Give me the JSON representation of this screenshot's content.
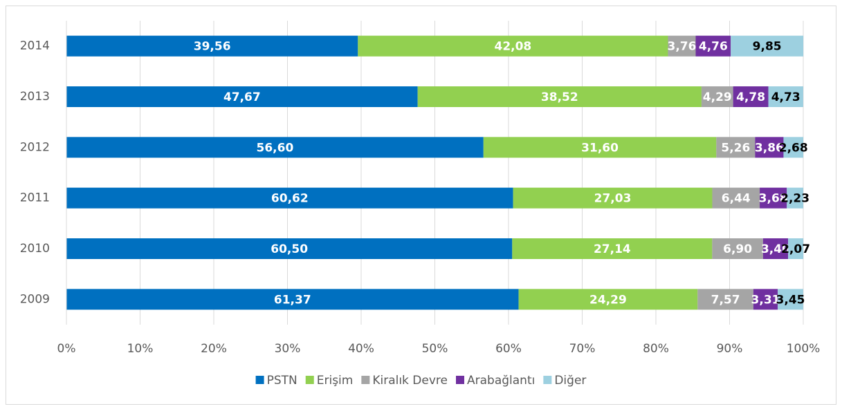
{
  "chart_data": {
    "type": "stacked_barh",
    "categories": [
      "2009",
      "2010",
      "2011",
      "2012",
      "2013",
      "2014"
    ],
    "series": [
      {
        "name": "PSTN",
        "color": "#0070c0",
        "label_color": "#ffffff",
        "values": [
          61.37,
          60.5,
          60.62,
          56.6,
          47.67,
          39.56
        ],
        "value_labels": [
          "61,37",
          "60,50",
          "60,62",
          "56,60",
          "47,67",
          "39,56"
        ]
      },
      {
        "name": "Erişim",
        "color": "#92d050",
        "label_color": "#ffffff",
        "values": [
          24.29,
          27.14,
          27.03,
          31.6,
          38.52,
          42.08
        ],
        "value_labels": [
          "24,29",
          "27,14",
          "27,03",
          "31,60",
          "38,52",
          "42,08"
        ]
      },
      {
        "name": "Kiralık Devre",
        "color": "#a5a5a5",
        "label_color": "#ffffff",
        "values": [
          7.57,
          6.9,
          6.44,
          5.26,
          4.29,
          3.76
        ],
        "value_labels": [
          "7,57",
          "6,90",
          "6,44",
          "5,26",
          "4,29",
          "3,76"
        ]
      },
      {
        "name": "Arabağlantı",
        "color": "#7030a0",
        "label_color": "#ffffff",
        "values": [
          3.31,
          3.4,
          3.68,
          3.86,
          4.78,
          4.76
        ],
        "value_labels": [
          "3,31",
          "3,40",
          "3,68",
          "3,86",
          "4,78",
          "4,76"
        ]
      },
      {
        "name": "Diğer",
        "color": "#9dd0e0",
        "label_color": "#000000",
        "values": [
          3.45,
          2.07,
          2.23,
          2.68,
          4.73,
          9.85
        ],
        "value_labels": [
          "3,45",
          "2,07",
          "2,23",
          "2,68",
          "4,73",
          "9,85"
        ]
      }
    ],
    "xlim": [
      0,
      100
    ],
    "xticks": [
      {
        "value": 0,
        "label": "0%"
      },
      {
        "value": 10,
        "label": "10%"
      },
      {
        "value": 20,
        "label": "20%"
      },
      {
        "value": 30,
        "label": "30%"
      },
      {
        "value": 40,
        "label": "40%"
      },
      {
        "value": 50,
        "label": "50%"
      },
      {
        "value": 60,
        "label": "60%"
      },
      {
        "value": 70,
        "label": "70%"
      },
      {
        "value": 80,
        "label": "80%"
      },
      {
        "value": 90,
        "label": "90%"
      },
      {
        "value": 100,
        "label": "100%"
      }
    ],
    "grid": true,
    "legend": "bottom"
  }
}
